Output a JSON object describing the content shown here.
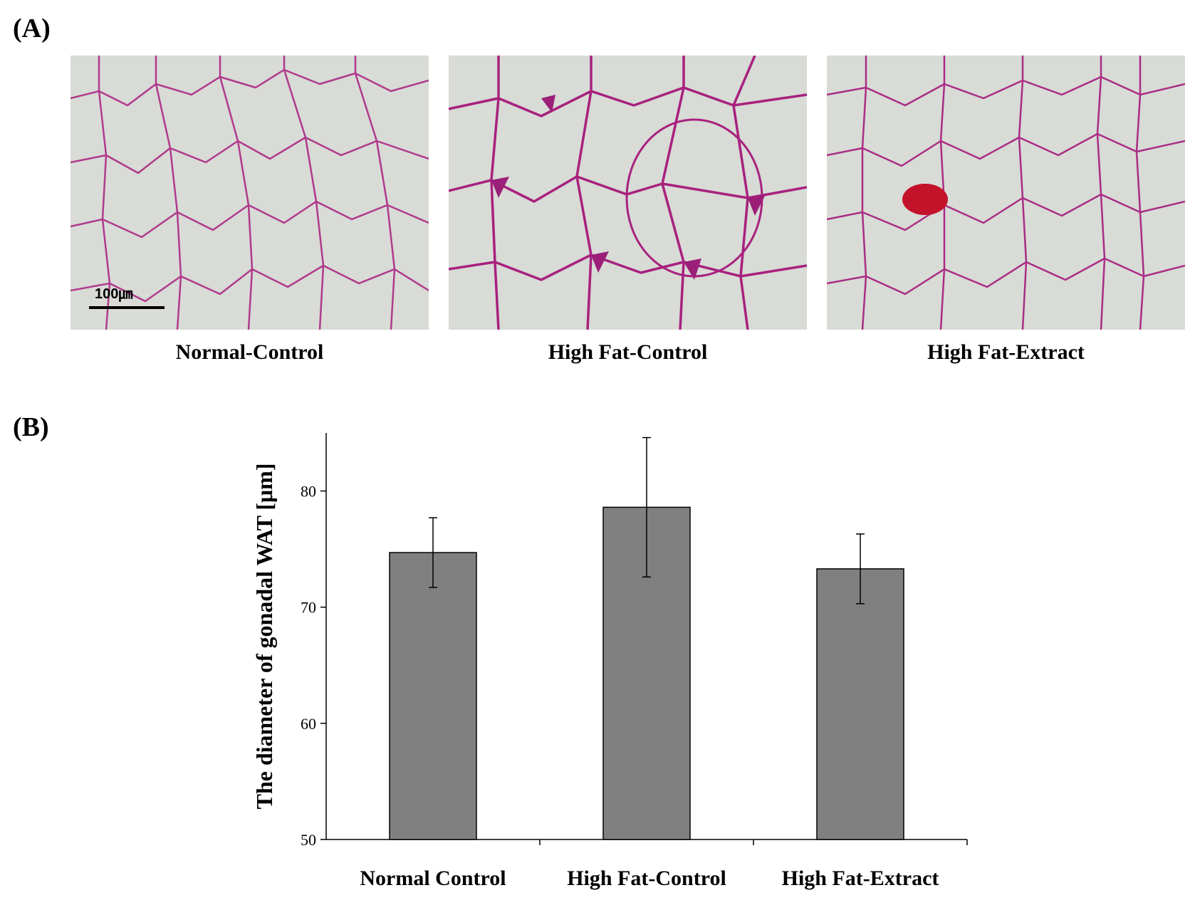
{
  "panel_a": {
    "label": "(A)",
    "scale_bar_text": "100㎛",
    "images": [
      {
        "caption": "Normal-Control"
      },
      {
        "caption": "High Fat-Control"
      },
      {
        "caption": "High Fat-Extract"
      }
    ]
  },
  "panel_b": {
    "label": "(B)"
  },
  "chart_data": {
    "type": "bar",
    "categories": [
      "Normal Control",
      "High Fat-Control",
      "High Fat-Extract"
    ],
    "values": [
      74.7,
      78.6,
      73.3
    ],
    "errors": [
      3.0,
      6.0,
      3.0
    ],
    "ylabel": "The diameter of gonadal WAT [μm]",
    "xlabel": "",
    "ylim": [
      50,
      85
    ],
    "yticks": [
      50,
      60,
      70,
      80
    ],
    "bar_color": "#808080",
    "grid": false
  }
}
